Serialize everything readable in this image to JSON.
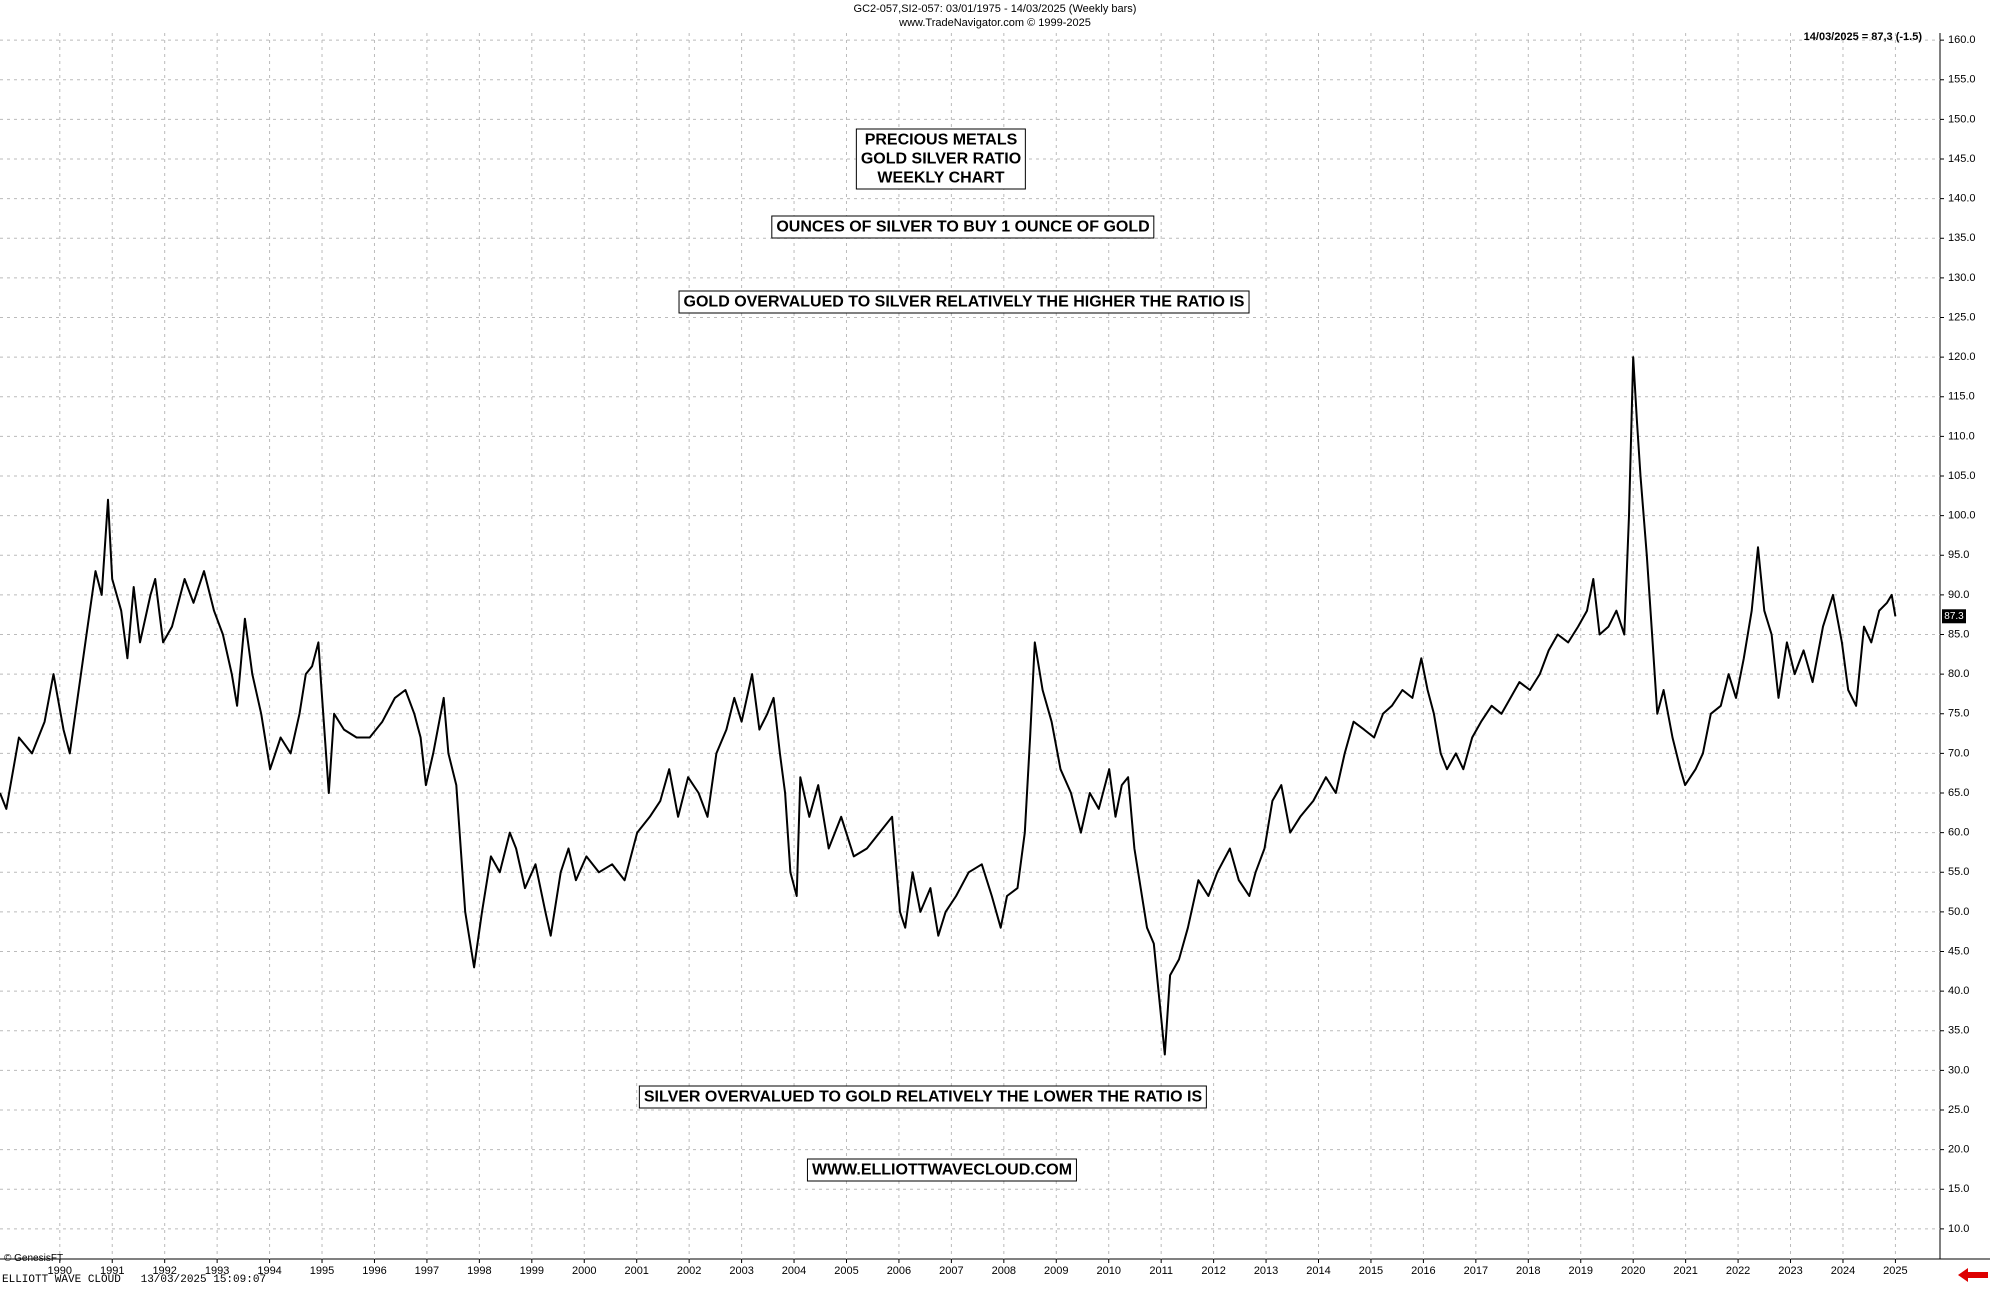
{
  "chart_data": {
    "type": "line",
    "header": [
      "GC2-057,SI2-057:  03/01/1975 - 14/03/2025  (Weekly bars)",
      "www.TradeNavigator.com © 1999-2025"
    ],
    "last_value_note": "14/03/2025 = 87,3 (-1.5)",
    "title_lines": [
      "PRECIOUS METALS",
      "GOLD SILVER RATIO",
      "WEEKLY CHART"
    ],
    "annotations": [
      "OUNCES OF SILVER TO BUY 1 OUNCE OF GOLD",
      "GOLD OVERVALUED TO SILVER RELATIVELY THE HIGHER THE RATIO IS",
      "SILVER OVERVALUED TO GOLD RELATIVELY THE LOWER THE RATIO IS",
      "WWW.ELLIOTTWAVECLOUD.COM"
    ],
    "footer": [
      "© GenesisFT",
      "ELLIOTT WAVE CLOUD   13/03/2025 15:09:07"
    ],
    "x": [
      1988.86,
      1988.98,
      1989.22,
      1989.47,
      1989.71,
      1989.88,
      1990.07,
      1990.19,
      1990.36,
      1990.51,
      1990.68,
      1990.8,
      1990.92,
      1991.0,
      1991.17,
      1991.29,
      1991.41,
      1991.53,
      1991.73,
      1991.82,
      1991.97,
      1992.14,
      1992.38,
      1992.55,
      1992.75,
      1992.94,
      1993.11,
      1993.28,
      1993.38,
      1993.53,
      1993.67,
      1993.84,
      1994.01,
      1994.21,
      1994.4,
      1994.57,
      1994.69,
      1994.81,
      1994.93,
      1994.98,
      1995.13,
      1995.23,
      1995.42,
      1995.66,
      1995.91,
      1996.15,
      1996.39,
      1996.59,
      1996.76,
      1996.88,
      1996.98,
      1997.12,
      1997.32,
      1997.41,
      1997.56,
      1997.73,
      1997.9,
      1998.05,
      1998.22,
      1998.39,
      1998.58,
      1998.7,
      1998.87,
      1999.07,
      1999.26,
      1999.36,
      1999.55,
      1999.7,
      1999.84,
      2000.04,
      2000.28,
      2000.53,
      2000.77,
      2001.01,
      2001.25,
      2001.45,
      2001.62,
      2001.79,
      2001.98,
      2002.18,
      2002.35,
      2002.52,
      2002.71,
      2002.86,
      2003.0,
      2003.2,
      2003.34,
      2003.49,
      2003.61,
      2003.73,
      2003.83,
      2003.93,
      2004.05,
      2004.12,
      2004.29,
      2004.46,
      2004.66,
      2004.9,
      2005.14,
      2005.39,
      2005.63,
      2005.87,
      2006.02,
      2006.12,
      2006.26,
      2006.41,
      2006.6,
      2006.75,
      2006.89,
      2007.09,
      2007.33,
      2007.58,
      2007.77,
      2007.94,
      2008.06,
      2008.26,
      2008.4,
      2008.5,
      2008.59,
      2008.74,
      2008.91,
      2009.08,
      2009.28,
      2009.47,
      2009.64,
      2009.81,
      2010.01,
      2010.13,
      2010.25,
      2010.37,
      2010.49,
      2010.61,
      2010.73,
      2010.86,
      2010.98,
      2011.07,
      2011.17,
      2011.34,
      2011.51,
      2011.71,
      2011.9,
      2012.07,
      2012.31,
      2012.48,
      2012.68,
      2012.8,
      2012.97,
      2013.12,
      2013.29,
      2013.46,
      2013.65,
      2013.9,
      2014.14,
      2014.33,
      2014.5,
      2014.67,
      2014.87,
      2015.06,
      2015.23,
      2015.4,
      2015.6,
      2015.79,
      2015.96,
      2016.08,
      2016.2,
      2016.33,
      2016.45,
      2016.62,
      2016.76,
      2016.93,
      2017.1,
      2017.3,
      2017.49,
      2017.66,
      2017.83,
      2018.03,
      2018.22,
      2018.39,
      2018.56,
      2018.76,
      2018.95,
      2019.12,
      2019.24,
      2019.36,
      2019.53,
      2019.68,
      2019.83,
      2019.92,
      2020.0,
      2020.07,
      2020.14,
      2020.26,
      2020.36,
      2020.46,
      2020.58,
      2020.75,
      2020.9,
      2020.99,
      2021.19,
      2021.33,
      2021.48,
      2021.67,
      2021.82,
      2021.96,
      2022.11,
      2022.26,
      2022.38,
      2022.5,
      2022.64,
      2022.77,
      2022.93,
      2023.08,
      2023.25,
      2023.42,
      2023.62,
      2023.81,
      2023.98,
      2024.1,
      2024.25,
      2024.4,
      2024.54,
      2024.69,
      2024.84,
      2024.93,
      2025.0
    ],
    "series": [
      {
        "name": "Gold Silver Ratio",
        "color": "#000000",
        "values": [
          65,
          63,
          72,
          70,
          74,
          80,
          73,
          70,
          78,
          85,
          93,
          90,
          102,
          92,
          88,
          82,
          91,
          84,
          90,
          92,
          84,
          86,
          92,
          89,
          93,
          88,
          85,
          80,
          76,
          87,
          80,
          75,
          68,
          72,
          70,
          75,
          80,
          81,
          84,
          79,
          65,
          75,
          73,
          72,
          72,
          74,
          77,
          78,
          75,
          72,
          66,
          70,
          77,
          70,
          66,
          50,
          43,
          50,
          57,
          55,
          60,
          58,
          53,
          56,
          50,
          47,
          55,
          58,
          54,
          57,
          55,
          56,
          54,
          60,
          62,
          64,
          68,
          62,
          67,
          65,
          62,
          70,
          73,
          77,
          74,
          80,
          73,
          75,
          77,
          70,
          65,
          55,
          52,
          67,
          62,
          66,
          58,
          62,
          57,
          58,
          60,
          62,
          50,
          48,
          55,
          50,
          53,
          47,
          50,
          52,
          55,
          56,
          52,
          48,
          52,
          53,
          60,
          72,
          84,
          78,
          74,
          68,
          65,
          60,
          65,
          63,
          68,
          62,
          66,
          67,
          58,
          53,
          48,
          46,
          38,
          32,
          42,
          44,
          48,
          54,
          52,
          55,
          58,
          54,
          52,
          55,
          58,
          64,
          66,
          60,
          62,
          64,
          67,
          65,
          70,
          74,
          73,
          72,
          75,
          76,
          78,
          77,
          82,
          78,
          75,
          70,
          68,
          70,
          68,
          72,
          74,
          76,
          75,
          77,
          79,
          78,
          80,
          83,
          85,
          84,
          86,
          88,
          92,
          85,
          86,
          88,
          85,
          100,
          120,
          112,
          105,
          95,
          85,
          75,
          78,
          72,
          68,
          66,
          68,
          70,
          75,
          76,
          80,
          77,
          82,
          88,
          96,
          88,
          85,
          77,
          84,
          80,
          83,
          79,
          86,
          90,
          84,
          78,
          76,
          86,
          84,
          88,
          89,
          90,
          87.3
        ]
      }
    ],
    "xlim": [
      1988.86,
      2025.85
    ],
    "xticks": [
      1990,
      1991,
      1992,
      1993,
      1994,
      1995,
      1996,
      1997,
      1998,
      1999,
      2000,
      2001,
      2002,
      2003,
      2004,
      2005,
      2006,
      2007,
      2008,
      2009,
      2010,
      2011,
      2012,
      2013,
      2014,
      2015,
      2016,
      2017,
      2018,
      2019,
      2020,
      2021,
      2022,
      2023,
      2024,
      2025
    ],
    "ylim": [
      6.2,
      160.9
    ],
    "yticks": [
      {
        "value": 160,
        "label": "160.0"
      },
      {
        "value": 155,
        "label": "155.0"
      },
      {
        "value": 150,
        "label": "150.0"
      },
      {
        "value": 145,
        "label": "145.0"
      },
      {
        "value": 140,
        "label": "140.0"
      },
      {
        "value": 135,
        "label": "135.0"
      },
      {
        "value": 130,
        "label": "130.0"
      },
      {
        "value": 125,
        "label": "125.0"
      },
      {
        "value": 120,
        "label": "120.0"
      },
      {
        "value": 115,
        "label": "115.0"
      },
      {
        "value": 110,
        "label": "110.0"
      },
      {
        "value": 105,
        "label": "105.0"
      },
      {
        "value": 100,
        "label": "100.0"
      },
      {
        "value": 95,
        "label": "95.0"
      },
      {
        "value": 90,
        "label": "90.0"
      },
      {
        "value": 85,
        "label": "85.0"
      },
      {
        "value": 80,
        "label": "80.0"
      },
      {
        "value": 75,
        "label": "75.0"
      },
      {
        "value": 70,
        "label": "70.0"
      },
      {
        "value": 65,
        "label": "65.0"
      },
      {
        "value": 60,
        "label": "60.0"
      },
      {
        "value": 55,
        "label": "55.0"
      },
      {
        "value": 50,
        "label": "50.0"
      },
      {
        "value": 45,
        "label": "45.0"
      },
      {
        "value": 40,
        "label": "40.0"
      },
      {
        "value": 35,
        "label": "35.0"
      },
      {
        "value": 30,
        "label": "30.0"
      },
      {
        "value": 25,
        "label": "25.0"
      },
      {
        "value": 20,
        "label": "20.0"
      },
      {
        "value": 15,
        "label": "15.0"
      },
      {
        "value": 10,
        "label": "10.0"
      }
    ],
    "grid": true
  }
}
